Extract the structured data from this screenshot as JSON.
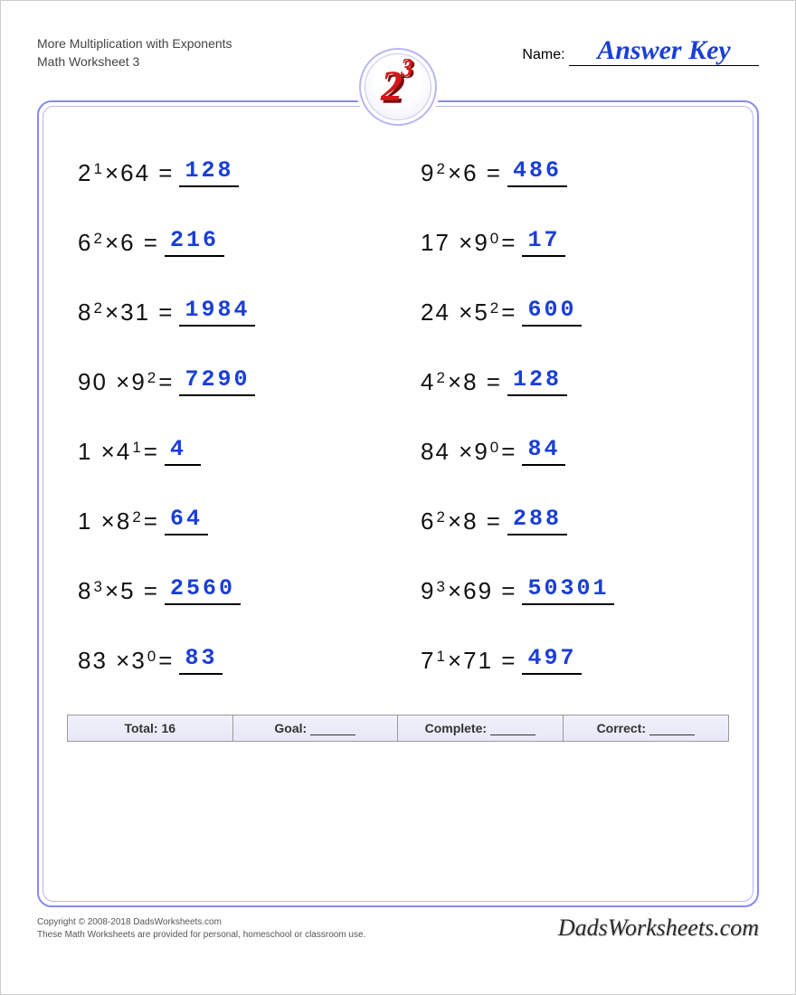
{
  "header": {
    "title_line1": "More Multiplication with Exponents",
    "title_line2": "Math Worksheet 3",
    "name_label": "Name:",
    "name_value": "Answer Key"
  },
  "logo": {
    "base": "2",
    "exp": "3"
  },
  "colors": {
    "answer": "#1a3fd6",
    "border": "#8a8af0",
    "logo_red": "#d01818"
  },
  "problems": [
    {
      "pre": "2",
      "pre_exp": "1",
      "op": "×",
      "post": "64",
      "post_exp": "",
      "answer": "128"
    },
    {
      "pre": "9",
      "pre_exp": "2",
      "op": "×",
      "post": "6",
      "post_exp": "",
      "answer": "486"
    },
    {
      "pre": "6",
      "pre_exp": "2",
      "op": "×",
      "post": "6",
      "post_exp": "",
      "answer": "216"
    },
    {
      "pre": "17",
      "pre_exp": "",
      "op": "×",
      "post": "9",
      "post_exp": "0",
      "answer": "17"
    },
    {
      "pre": "8",
      "pre_exp": "2",
      "op": "×",
      "post": "31",
      "post_exp": "",
      "answer": "1984"
    },
    {
      "pre": "24",
      "pre_exp": "",
      "op": "×",
      "post": "5",
      "post_exp": "2",
      "answer": "600"
    },
    {
      "pre": "90",
      "pre_exp": "",
      "op": "×",
      "post": "9",
      "post_exp": "2",
      "answer": "7290"
    },
    {
      "pre": "4",
      "pre_exp": "2",
      "op": "×",
      "post": "8",
      "post_exp": "",
      "answer": "128"
    },
    {
      "pre": "1",
      "pre_exp": "",
      "op": "×",
      "post": "4",
      "post_exp": "1",
      "answer": "4"
    },
    {
      "pre": "84",
      "pre_exp": "",
      "op": "×",
      "post": "9",
      "post_exp": "0",
      "answer": "84"
    },
    {
      "pre": "1",
      "pre_exp": "",
      "op": "×",
      "post": "8",
      "post_exp": "2",
      "answer": "64"
    },
    {
      "pre": "6",
      "pre_exp": "2",
      "op": "×",
      "post": "8",
      "post_exp": "",
      "answer": "288"
    },
    {
      "pre": "8",
      "pre_exp": "3",
      "op": "×",
      "post": "5",
      "post_exp": "",
      "answer": "2560"
    },
    {
      "pre": "9",
      "pre_exp": "3",
      "op": "×",
      "post": "69",
      "post_exp": "",
      "answer": "50301"
    },
    {
      "pre": "83",
      "pre_exp": "",
      "op": "×",
      "post": "3",
      "post_exp": "0",
      "answer": "83"
    },
    {
      "pre": "7",
      "pre_exp": "1",
      "op": "×",
      "post": "71",
      "post_exp": "",
      "answer": "497"
    }
  ],
  "stats": {
    "total_label": "Total: 16",
    "goal_label": "Goal:",
    "complete_label": "Complete:",
    "correct_label": "Correct:"
  },
  "footer": {
    "copyright": "Copyright © 2008-2018 DadsWorksheets.com",
    "disclaimer": "These Math Worksheets are provided for personal, homeschool or classroom use.",
    "brand": "DadsWorksheets.com"
  }
}
